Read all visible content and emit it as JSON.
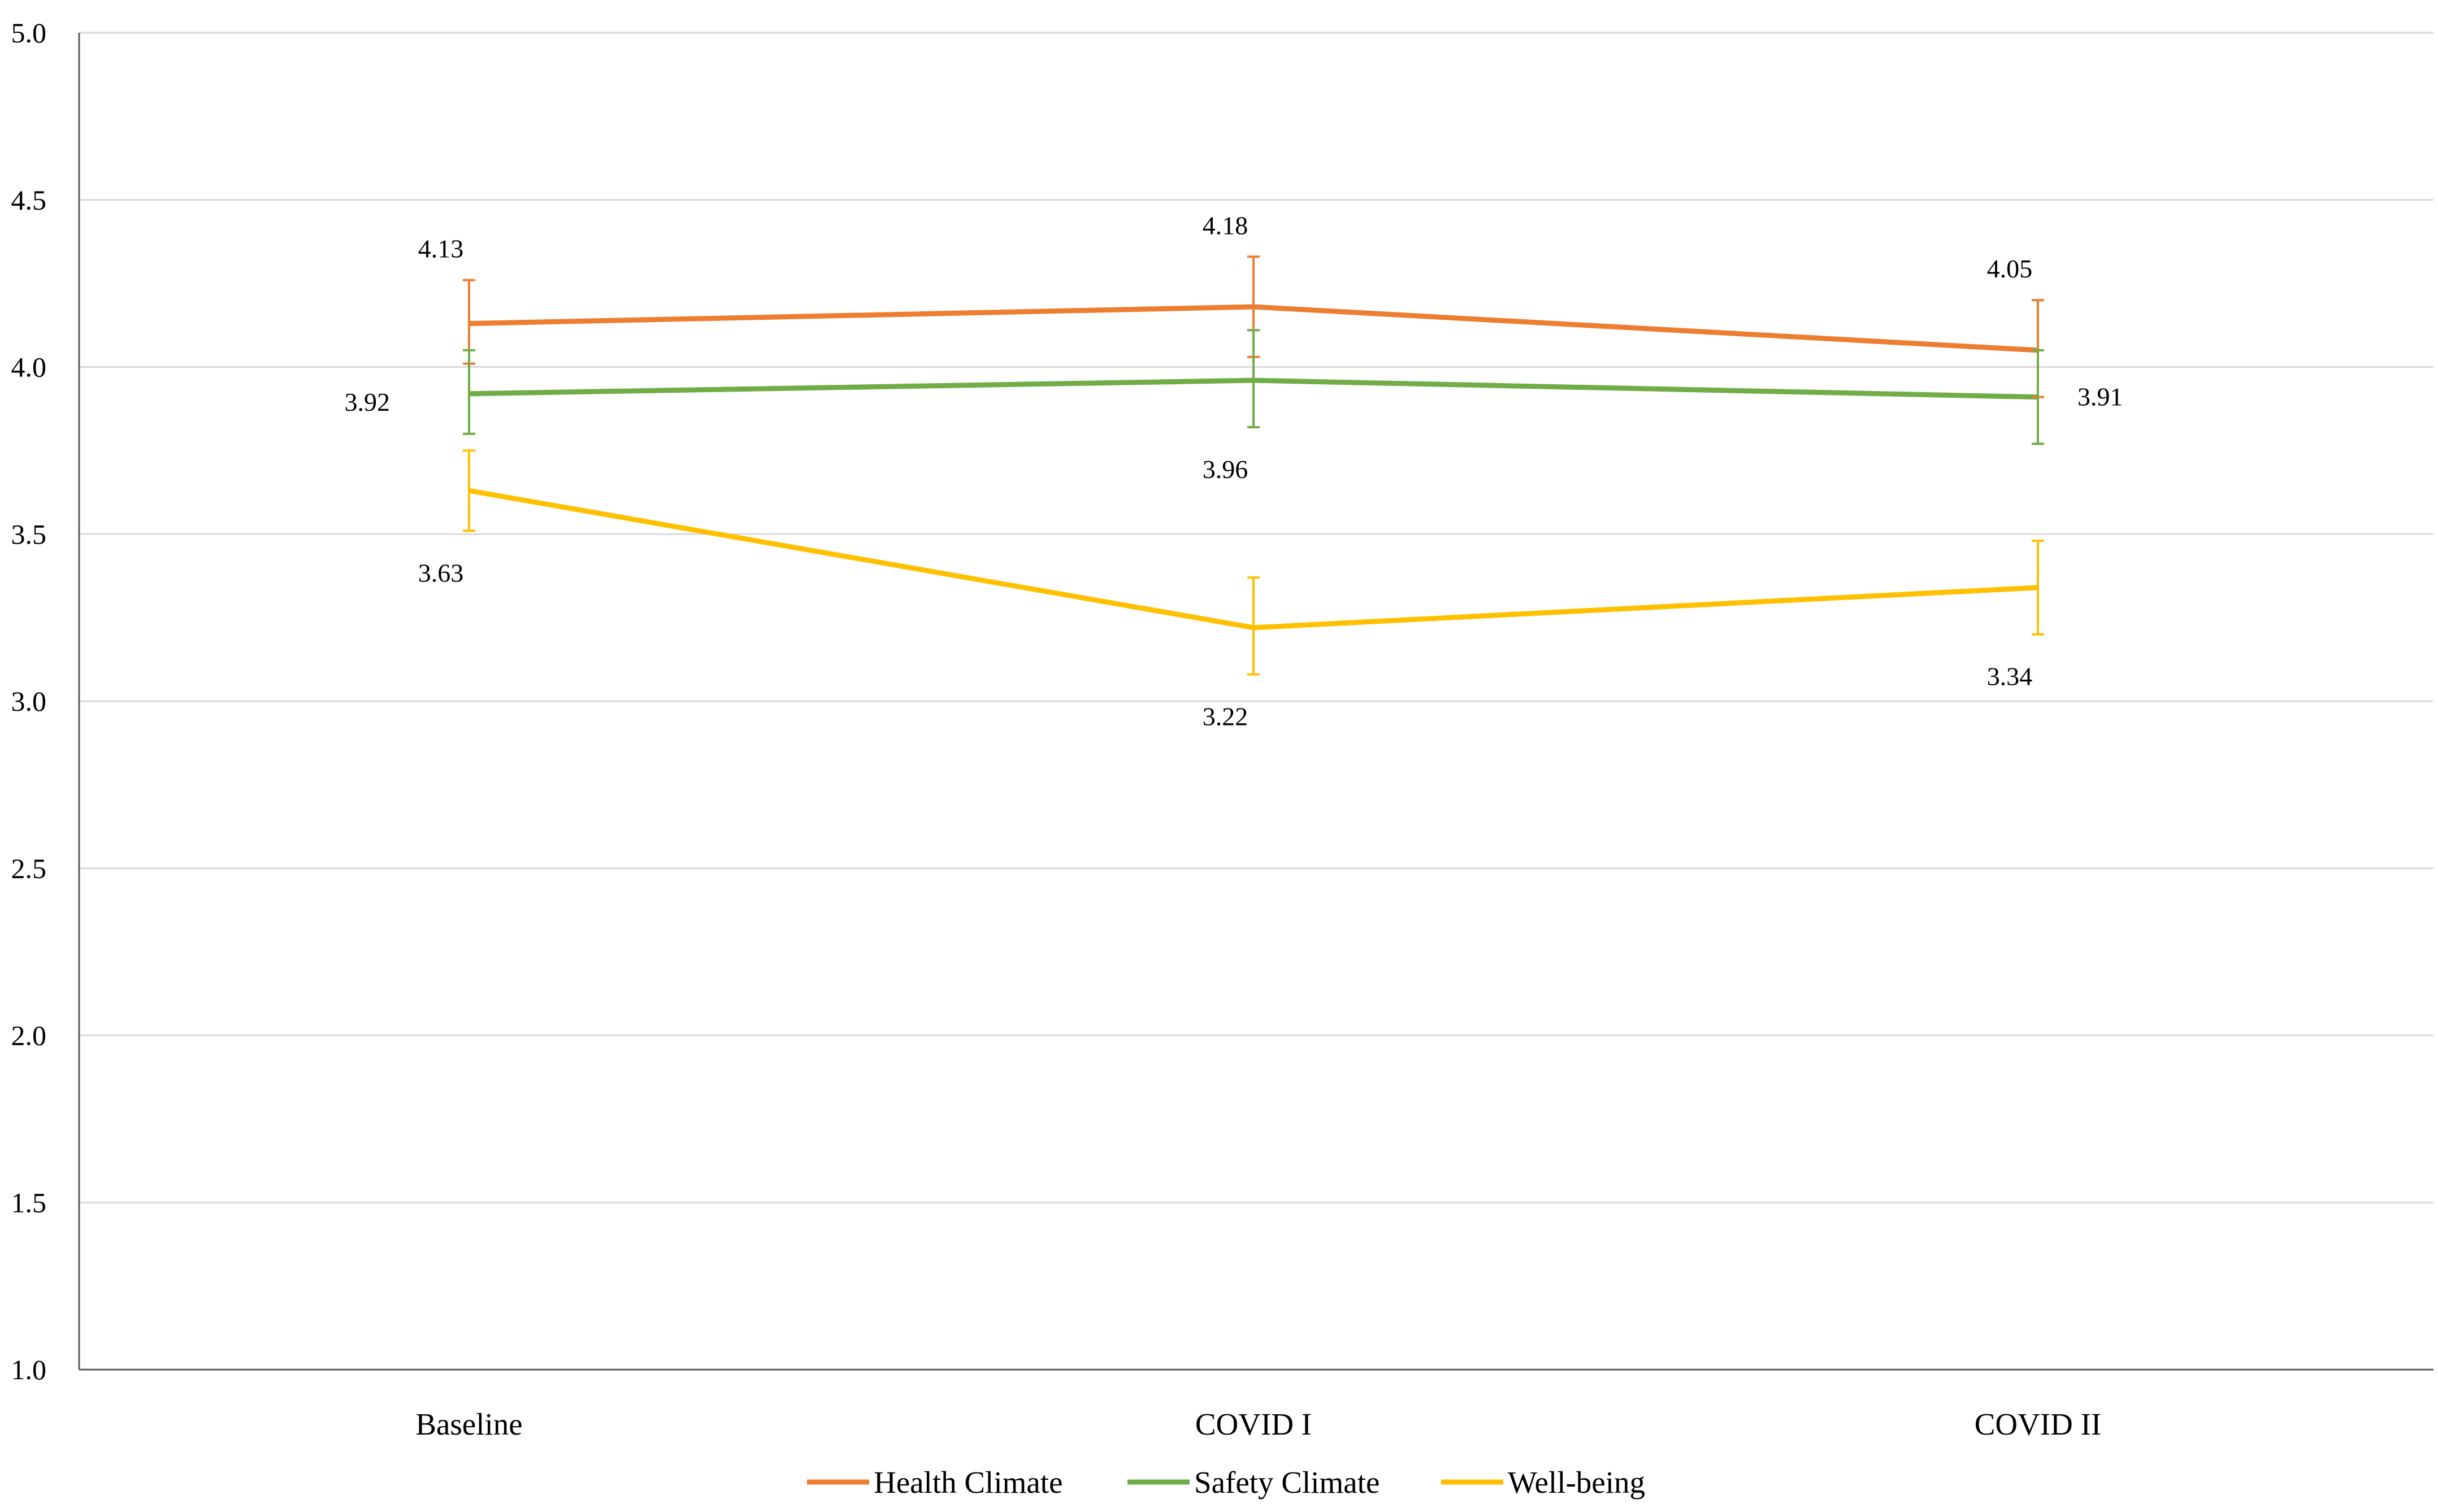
{
  "chart_data": {
    "type": "line",
    "title": "",
    "xlabel": "",
    "ylabel": "",
    "categories": [
      "Baseline",
      "COVID I",
      "COVID II"
    ],
    "ylim": [
      1.0,
      5.0
    ],
    "yticks": [
      "1.0",
      "1.5",
      "2.0",
      "2.5",
      "3.0",
      "3.5",
      "4.0",
      "4.5",
      "5.0"
    ],
    "grid": true,
    "legend_position": "bottom",
    "series": [
      {
        "name": "Health Climate",
        "color": "#ED7D31",
        "values": [
          4.13,
          4.18,
          4.05
        ],
        "labels": [
          "4.13",
          "4.18",
          "4.05"
        ],
        "error_low": [
          4.01,
          4.03,
          3.91
        ],
        "error_high": [
          4.26,
          4.33,
          4.2
        ],
        "label_position": [
          "above",
          "above",
          "above"
        ]
      },
      {
        "name": "Safety Climate",
        "color": "#70AD47",
        "values": [
          3.92,
          3.96,
          3.91
        ],
        "labels": [
          "3.92",
          "3.96",
          "3.91"
        ],
        "error_low": [
          3.8,
          3.82,
          3.77
        ],
        "error_high": [
          4.05,
          4.11,
          4.05
        ],
        "label_position": [
          "left",
          "below",
          "right"
        ]
      },
      {
        "name": "Well-being",
        "color": "#FFC000",
        "values": [
          3.63,
          3.22,
          3.34
        ],
        "labels": [
          "3.63",
          "3.22",
          "3.34"
        ],
        "error_low": [
          3.51,
          3.08,
          3.2
        ],
        "error_high": [
          3.75,
          3.37,
          3.48
        ],
        "label_position": [
          "below",
          "below",
          "below"
        ]
      }
    ]
  }
}
